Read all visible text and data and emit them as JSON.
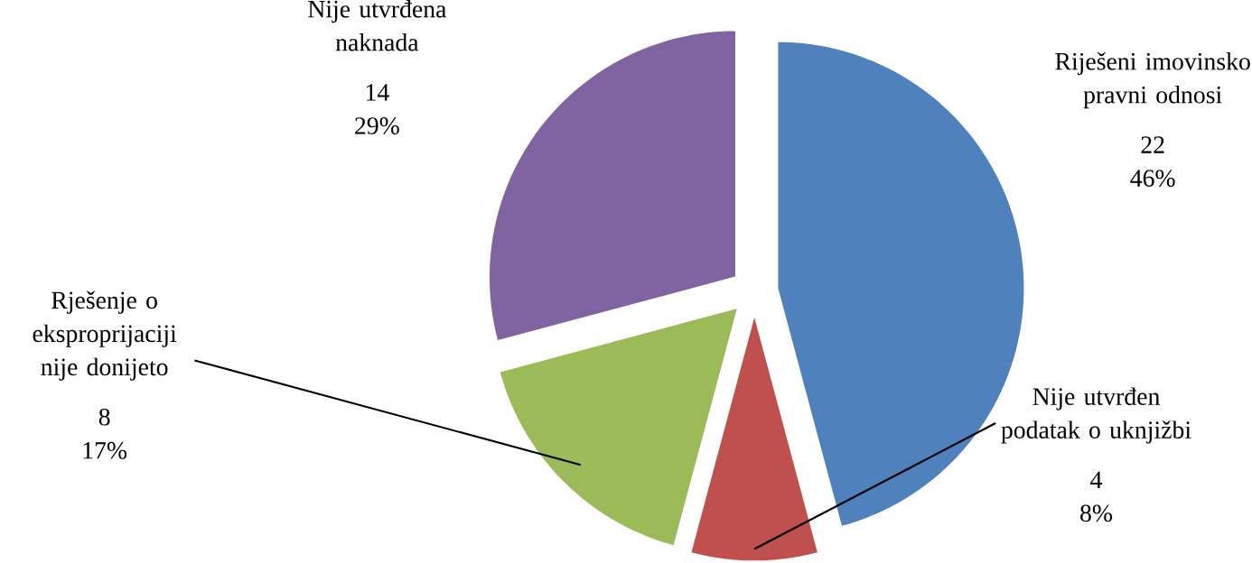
{
  "chart_data": {
    "type": "pie",
    "categories": [
      "Riješeni imovinsko pravni odnosi",
      "Nije utvrđen podatak o uknjižbi",
      "Rješenje o eksproprijaciji nije donijeto",
      "Nije utvrđena naknada"
    ],
    "values": [
      22,
      4,
      8,
      14
    ],
    "value_labels": [
      "22 46%",
      "4 8%",
      "8 17%",
      "14 29%"
    ],
    "colors": [
      "#4f81bd",
      "#c0504d",
      "#9bbb59",
      "#8064a2"
    ]
  }
}
